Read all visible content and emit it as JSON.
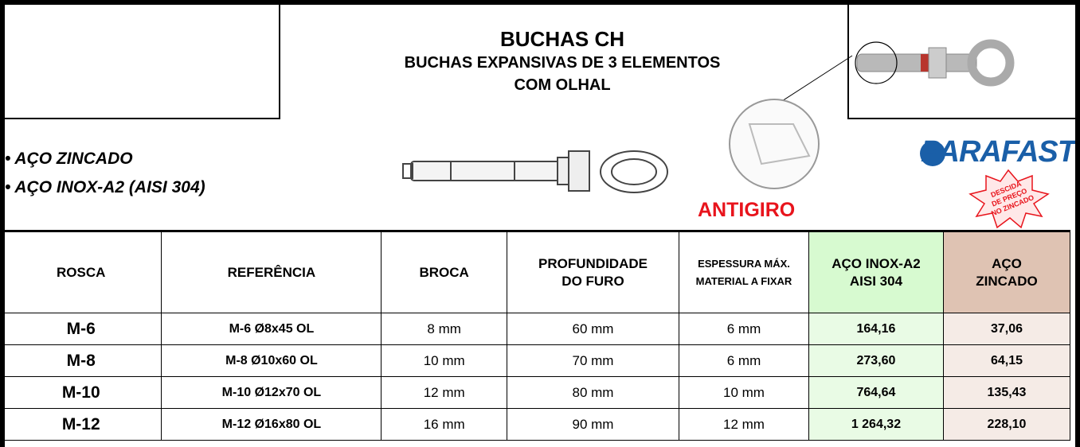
{
  "header": {
    "title": "BUCHAS CH",
    "subtitle": [
      "BUCHAS EXPANSIVAS DE 3 ELEMENTOS",
      "COM OLHAL"
    ]
  },
  "bullets": [
    "• AÇO ZINCADO",
    "• AÇO INOX-A2 (AISI 304)"
  ],
  "antigiro": "ANTIGIRO",
  "brand": "PARAFAST",
  "badge": [
    "DESCIDA",
    "DE PREÇO",
    "NO ZINCADO"
  ],
  "table": {
    "columns": [
      [
        "ROSCA"
      ],
      [
        "REFERÊNCIA"
      ],
      [
        "BROCA"
      ],
      [
        "PROFUNDIDADE",
        "DO FURO"
      ],
      [
        "ESPESSURA MÁX.",
        "MATERIAL A FIXAR"
      ],
      [
        "AÇO INOX-A2",
        "AISI 304"
      ],
      [
        "AÇO",
        "ZINCADO"
      ]
    ],
    "rows": [
      [
        "M-6",
        "M-6 Ø8x45 OL",
        "8 mm",
        "60 mm",
        "6 mm",
        "164,16",
        "37,06"
      ],
      [
        "M-8",
        "M-8 Ø10x60 OL",
        "10 mm",
        "70 mm",
        "6 mm",
        "273,60",
        "64,15"
      ],
      [
        "M-10",
        "M-10 Ø12x70 OL",
        "12 mm",
        "80 mm",
        "10 mm",
        "764,64",
        "135,43"
      ],
      [
        "M-12",
        "M-12 Ø16x80 OL",
        "16 mm",
        "90 mm",
        "12 mm",
        "1 264,32",
        "228,10"
      ]
    ]
  }
}
